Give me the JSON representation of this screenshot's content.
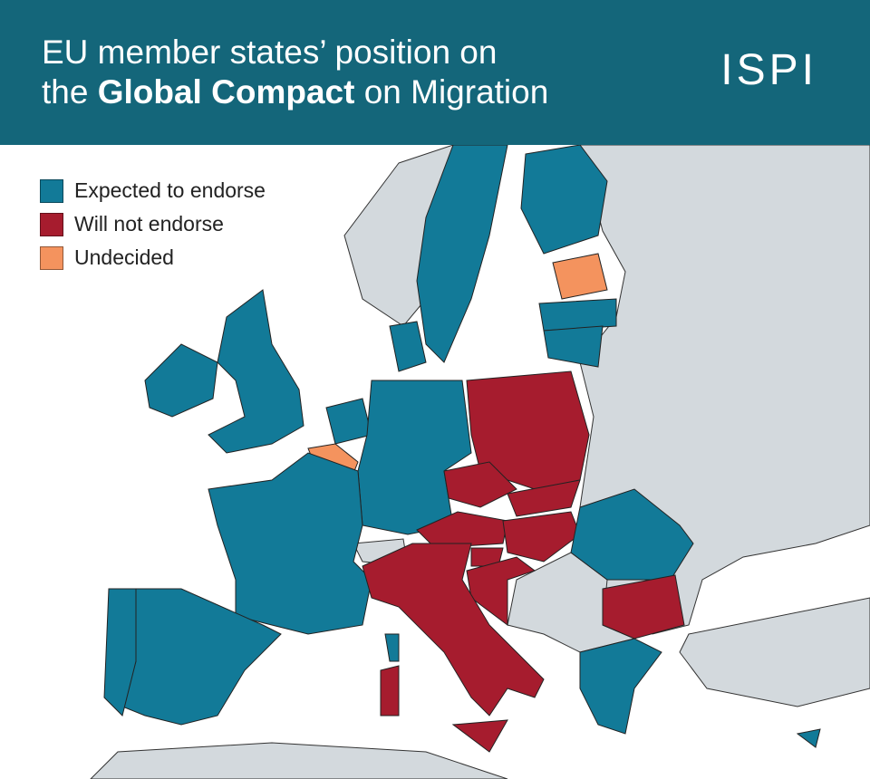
{
  "header": {
    "title_line1": "EU member states’ position on",
    "title_line2_pre": "the ",
    "title_line2_bold": "Global Compact",
    "title_line2_post": " on Migration",
    "logo": "ISPI"
  },
  "legend": [
    {
      "label": "Expected to endorse",
      "color": "#127a98"
    },
    {
      "label": "Will not endorse",
      "color": "#a61c2e"
    },
    {
      "label": "Undecided",
      "color": "#f4935e"
    }
  ]
}
